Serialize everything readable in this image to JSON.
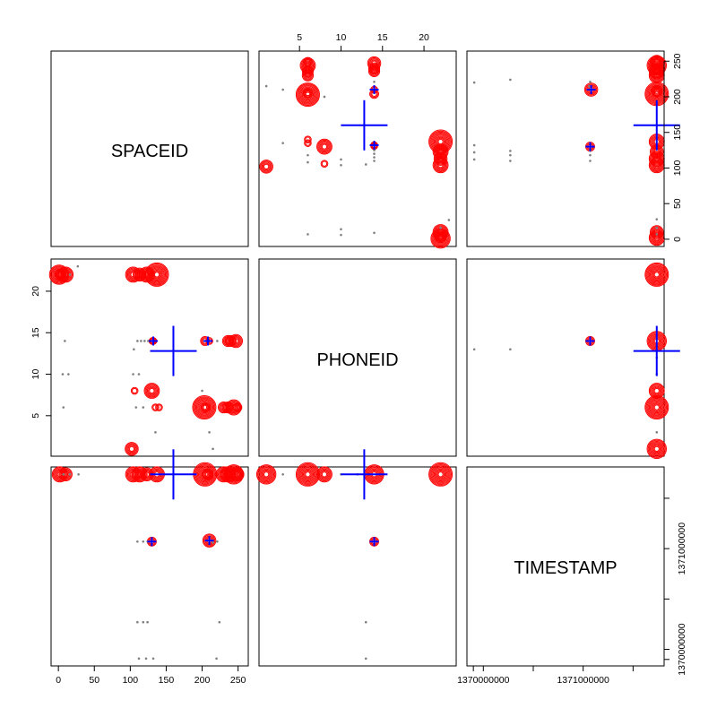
{
  "chart_data": {
    "type": "scatter",
    "subtype": "scatterplot-matrix with sunflower glyphs",
    "variables": [
      "SPACEID",
      "PHONEID",
      "TIMESTAMP"
    ],
    "ranges": {
      "SPACEID": [
        0,
        254
      ],
      "PHONEID": [
        1,
        23
      ],
      "TIMESTAMP": [
        1369908924,
        1371737757
      ]
    },
    "ticks": {
      "SPACEID": [
        0,
        50,
        100,
        150,
        200,
        250
      ],
      "PHONEID": [
        5,
        10,
        15,
        20
      ],
      "TIMESTAMP": [
        1370000000,
        1371000000
      ]
    },
    "minor_ticks": {
      "TIMESTAMP": [
        1369900000,
        1370500000,
        1371500000
      ]
    },
    "center": {
      "SPACEID": 160,
      "PHONEID": 12.8,
      "TIMESTAMP": 1371500000
    },
    "colors": {
      "heavy": "#ff0000",
      "light": "#808080",
      "center": "#0000ff",
      "frame": "#000000"
    },
    "points_space_phone": [
      [
        1,
        22,
        8
      ],
      [
        10,
        22,
        6
      ],
      [
        3,
        22,
        4
      ],
      [
        104,
        22,
        6
      ],
      [
        113,
        22,
        5
      ],
      [
        123,
        22,
        6
      ],
      [
        137,
        22,
        10
      ],
      [
        132,
        14,
        2
      ],
      [
        131,
        14,
        2
      ],
      [
        204,
        14,
        3
      ],
      [
        210,
        14,
        2
      ],
      [
        236,
        14,
        4
      ],
      [
        240,
        14,
        4
      ],
      [
        247,
        14,
        5
      ],
      [
        102,
        1,
        5
      ],
      [
        106,
        8,
        2
      ],
      [
        130,
        8,
        6
      ],
      [
        135,
        6,
        2
      ],
      [
        140,
        6,
        2
      ],
      [
        203,
        6,
        10
      ],
      [
        205,
        6,
        3
      ],
      [
        230,
        6,
        4
      ],
      [
        236,
        6,
        4
      ],
      [
        244,
        6,
        6
      ],
      [
        249,
        6,
        3
      ],
      [
        6,
        10,
        1
      ],
      [
        14,
        10,
        1
      ],
      [
        7,
        6,
        1
      ],
      [
        120,
        14,
        1
      ],
      [
        110,
        14,
        1
      ],
      [
        115,
        14,
        1
      ],
      [
        125,
        14,
        1
      ],
      [
        112,
        10,
        1
      ],
      [
        104,
        10,
        1
      ],
      [
        118,
        6,
        1
      ],
      [
        200,
        8,
        1
      ],
      [
        221,
        14,
        1
      ],
      [
        215,
        1,
        1
      ],
      [
        210,
        3,
        1
      ],
      [
        27,
        23,
        1
      ],
      [
        16,
        22,
        1
      ],
      [
        105,
        13,
        1
      ],
      [
        135,
        3,
        1
      ],
      [
        9,
        14,
        1
      ],
      [
        108,
        6,
        1
      ]
    ],
    "points_space_time": [
      [
        2,
        1371737000,
        6
      ],
      [
        10,
        1371737000,
        5
      ],
      [
        104,
        1371737000,
        6
      ],
      [
        113,
        1371737000,
        6
      ],
      [
        123,
        1371737000,
        5
      ],
      [
        137,
        1371737000,
        6
      ],
      [
        204,
        1371737000,
        10
      ],
      [
        208,
        1371737000,
        4
      ],
      [
        230,
        1371737000,
        6
      ],
      [
        236,
        1371737000,
        6
      ],
      [
        244,
        1371737000,
        8
      ],
      [
        249,
        1371737000,
        5
      ],
      [
        130,
        1371070000,
        3
      ],
      [
        210,
        1371080000,
        5
      ],
      [
        28,
        1371737000,
        1
      ],
      [
        16,
        1371737000,
        1
      ],
      [
        7,
        1371737000,
        1
      ],
      [
        110,
        1371070000,
        1
      ],
      [
        118,
        1371070000,
        1
      ],
      [
        124,
        1371070000,
        1
      ],
      [
        221,
        1371070000,
        1
      ],
      [
        215,
        1371060000,
        1
      ],
      [
        110,
        1370270000,
        1
      ],
      [
        118,
        1370270000,
        1
      ],
      [
        124,
        1370270000,
        1
      ],
      [
        224,
        1370270000,
        1
      ],
      [
        112,
        1369908924,
        1
      ],
      [
        122,
        1369908924,
        1
      ],
      [
        132,
        1369908924,
        1
      ],
      [
        220,
        1369908924,
        1
      ]
    ],
    "points_phone_time": [
      [
        1,
        1371737000,
        8
      ],
      [
        6,
        1371737000,
        10
      ],
      [
        8,
        1371737000,
        6
      ],
      [
        14,
        1371737000,
        8
      ],
      [
        22,
        1371737000,
        10
      ],
      [
        14,
        1371070000,
        3
      ],
      [
        3,
        1371737000,
        1
      ],
      [
        10,
        1371737000,
        1
      ],
      [
        12,
        1371737000,
        1
      ],
      [
        13,
        1370270000,
        1
      ],
      [
        13,
        1369908924,
        1
      ]
    ]
  }
}
